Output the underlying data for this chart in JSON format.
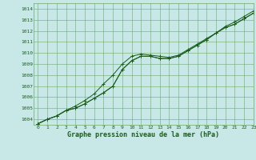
{
  "title": "Graphe pression niveau de la mer (hPa)",
  "background_color": "#c8e8e8",
  "grid_color": "#6aaa6a",
  "line_color": "#1a5c1a",
  "marker_color": "#1a5c1a",
  "xlim": [
    -0.5,
    23
  ],
  "ylim": [
    1003.5,
    1014.5
  ],
  "yticks": [
    1004,
    1005,
    1006,
    1007,
    1008,
    1009,
    1010,
    1011,
    1012,
    1013,
    1014
  ],
  "xticks": [
    0,
    1,
    2,
    3,
    4,
    5,
    6,
    7,
    8,
    9,
    10,
    11,
    12,
    13,
    14,
    15,
    16,
    17,
    18,
    19,
    20,
    21,
    22,
    23
  ],
  "series": [
    [
      1003.6,
      1004.0,
      1004.3,
      1004.8,
      1005.0,
      1005.4,
      1005.9,
      1006.4,
      1007.0,
      1008.5,
      1009.3,
      1009.7,
      1009.7,
      1009.5,
      1009.5,
      1009.7,
      1010.2,
      1010.7,
      1011.2,
      1011.8,
      1012.3,
      1012.6,
      1013.1,
      1013.6
    ],
    [
      1003.6,
      1004.0,
      1004.3,
      1004.8,
      1005.2,
      1005.7,
      1006.3,
      1007.2,
      1008.0,
      1009.0,
      1009.7,
      1009.9,
      1009.8,
      1009.7,
      1009.6,
      1009.8,
      1010.3,
      1010.8,
      1011.3,
      1011.8,
      1012.4,
      1012.8,
      1013.3,
      1013.8
    ],
    [
      1003.6,
      1004.0,
      1004.3,
      1004.8,
      1005.0,
      1005.4,
      1005.9,
      1006.4,
      1007.0,
      1008.5,
      1009.3,
      1009.7,
      1009.7,
      1009.5,
      1009.5,
      1009.7,
      1010.2,
      1010.7,
      1011.2,
      1011.8,
      1012.3,
      1012.6,
      1013.1,
      1013.6
    ]
  ],
  "figsize": [
    3.2,
    2.0
  ],
  "dpi": 100
}
